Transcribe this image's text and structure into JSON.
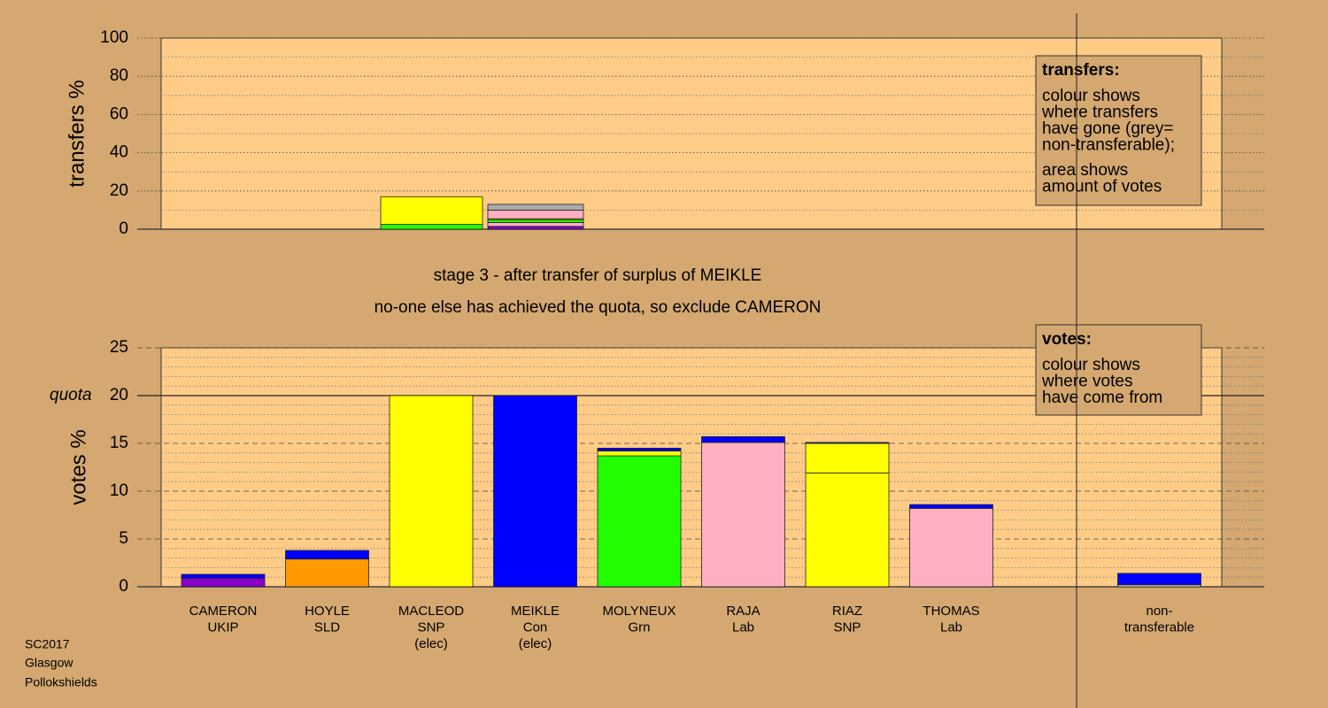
{
  "caption": [
    "stage 3 - after transfer of surplus of MEIKLE",
    "no-one else has achieved the quota, so exclude CAMERON"
  ],
  "footer": [
    "SC2017",
    "Glasgow",
    "Pollokshields"
  ],
  "chart_data": [
    {
      "type": "stacked-bar",
      "ylabel": "transfers %",
      "ylim": [
        0,
        100
      ],
      "yticks": [
        0,
        20,
        40,
        60,
        80,
        100
      ],
      "minor_yticks": [
        10,
        30,
        50,
        70,
        90
      ],
      "bars": [
        {
          "segments": [
            {
              "color": "#22ff00",
              "value": 2.5
            },
            {
              "color": "#ffff00",
              "value": 14.5
            }
          ]
        },
        {
          "segments": [
            {
              "color": "#8800cc",
              "value": 1.5
            },
            {
              "color": "#ffb0c0",
              "value": 2
            },
            {
              "color": "#22ff00",
              "value": 1.5
            },
            {
              "color": "#ffff00",
              "value": 0.5
            },
            {
              "color": "#ffb0c0",
              "value": 4.5
            },
            {
              "color": "#aaaaaa",
              "value": 3
            }
          ]
        }
      ],
      "info_box": {
        "title": "transfers:",
        "lines": [
          [
            "colour shows",
            "where transfers",
            "have gone (grey=",
            "non-transferable);"
          ],
          [
            "area shows",
            "amount of votes"
          ]
        ]
      }
    },
    {
      "type": "stacked-bar",
      "ylabel": "votes %",
      "ylim": [
        0,
        25
      ],
      "yticks": [
        0,
        5,
        10,
        15,
        20,
        25
      ],
      "minor_yticks": [
        1,
        2,
        3,
        4,
        6,
        7,
        8,
        9,
        11,
        12,
        13,
        14,
        16,
        17,
        18,
        19,
        21,
        22,
        23,
        24
      ],
      "quota": {
        "value": 20,
        "label": "quota"
      },
      "categories": [
        [
          "CAMERON",
          "UKIP"
        ],
        [
          "HOYLE",
          "SLD"
        ],
        [
          "MACLEOD",
          "SNP",
          "(elec)"
        ],
        [
          "MEIKLE",
          "Con",
          "(elec)"
        ],
        [
          "MOLYNEUX",
          "Grn"
        ],
        [
          "RAJA",
          "Lab"
        ],
        [
          "RIAZ",
          "SNP"
        ],
        [
          "THOMAS",
          "Lab"
        ],
        null,
        [
          "non-",
          "transferable"
        ]
      ],
      "bars": [
        {
          "segments": [
            {
              "color": "#8800cc",
              "value": 0.9
            },
            {
              "color": "#0000ff",
              "value": 0.4
            }
          ]
        },
        {
          "segments": [
            {
              "color": "#ff9900",
              "value": 2.9
            },
            {
              "color": "#0000ff",
              "value": 0.9
            }
          ]
        },
        {
          "segments": [
            {
              "color": "#ffff00",
              "value": 20
            }
          ]
        },
        {
          "segments": [
            {
              "color": "#0000ff",
              "value": 20
            }
          ]
        },
        {
          "segments": [
            {
              "color": "#22ff00",
              "value": 13.7
            },
            {
              "color": "#ffff00",
              "value": 0.5
            },
            {
              "color": "#0000ff",
              "value": 0.3
            }
          ]
        },
        {
          "segments": [
            {
              "color": "#ffb0c0",
              "value": 15.1
            },
            {
              "color": "#0000ff",
              "value": 0.6
            }
          ]
        },
        {
          "segments": [
            {
              "color": "#ffff00",
              "value": 11.9
            },
            {
              "color": "#ffff00",
              "value": 3.1
            },
            {
              "color": "#0000ff",
              "value": 0.1
            }
          ]
        },
        {
          "segments": [
            {
              "color": "#ffb0c0",
              "value": 8.2
            },
            {
              "color": "#0000ff",
              "value": 0.4
            }
          ]
        },
        {
          "segments": []
        },
        {
          "segments": [
            {
              "color": "#ffe0a0",
              "value": 0.2
            },
            {
              "color": "#0000ff",
              "value": 1.2
            }
          ]
        }
      ],
      "info_box": {
        "title": "votes:",
        "lines": [
          [
            "colour shows",
            "where votes",
            "have come from"
          ]
        ]
      }
    }
  ]
}
